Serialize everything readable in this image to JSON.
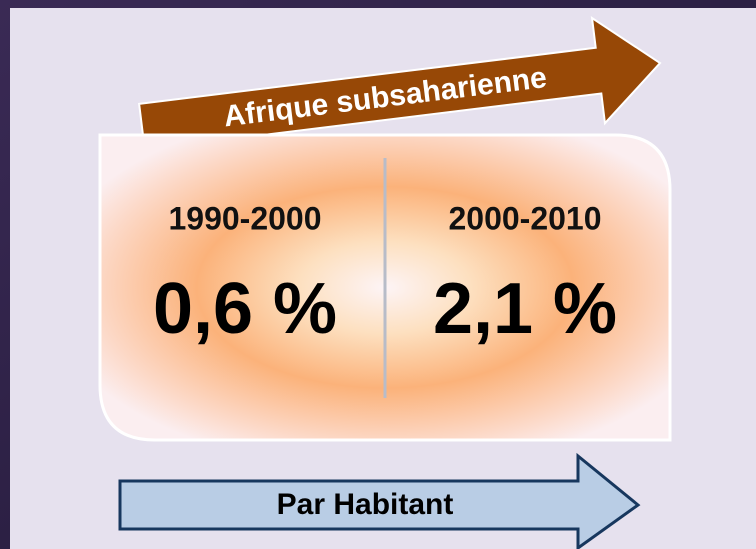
{
  "banner": "Afrique subsaharienne",
  "periods": [
    {
      "label": "1990-2000",
      "value": "0,6 %"
    },
    {
      "label": "2000-2010",
      "value": "2,1 %"
    }
  ],
  "footer": "Par Habitant"
}
